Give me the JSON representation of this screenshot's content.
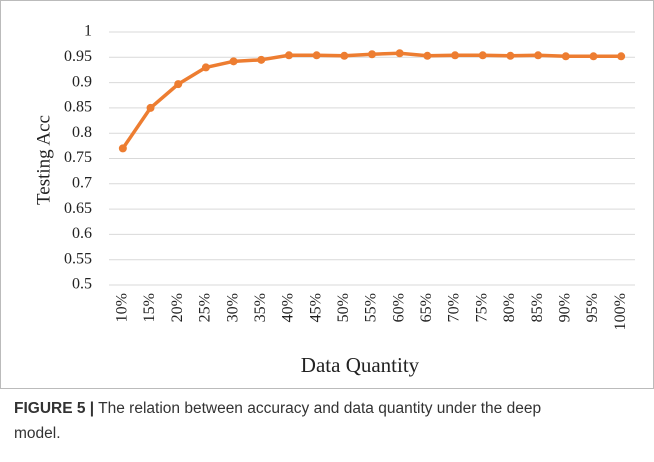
{
  "chart_data": {
    "type": "line",
    "x_label": "Data Quantity",
    "y_label": "Testing Acc",
    "categories": [
      "10%",
      "15%",
      "20%",
      "25%",
      "30%",
      "35%",
      "40%",
      "45%",
      "50%",
      "55%",
      "60%",
      "65%",
      "70%",
      "75%",
      "80%",
      "85%",
      "90%",
      "95%",
      "100%"
    ],
    "values": [
      0.77,
      0.85,
      0.897,
      0.93,
      0.942,
      0.945,
      0.954,
      0.954,
      0.953,
      0.956,
      0.958,
      0.953,
      0.954,
      0.954,
      0.953,
      0.954,
      0.952,
      0.952,
      0.952
    ],
    "color": "#ed7d31",
    "ylim": [
      0.5,
      1
    ],
    "yticks": [
      0.5,
      0.55,
      0.6,
      0.65,
      0.7,
      0.75,
      0.8,
      0.85,
      0.9,
      0.95,
      1
    ],
    "grid": true
  },
  "caption": {
    "label": "FIGURE 5 |",
    "text": "The relation between accuracy and data quantity under the deep",
    "text2": "model."
  }
}
